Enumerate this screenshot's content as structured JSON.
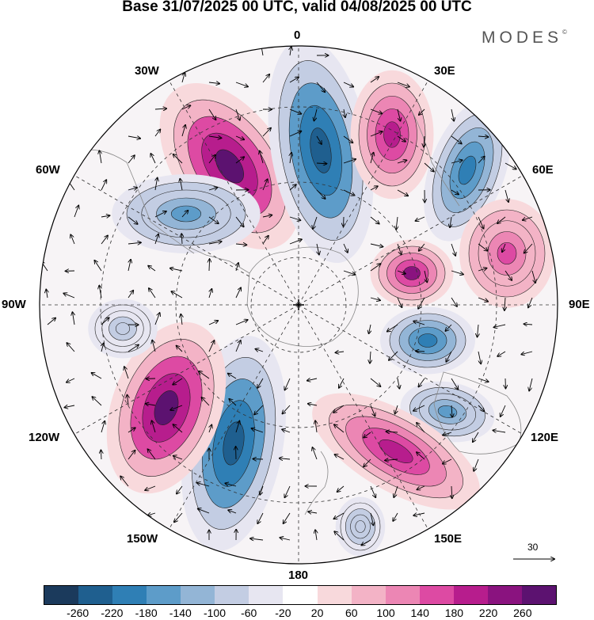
{
  "title": "Base 31/07/2025 00 UTC, valid 04/08/2025 00 UTC",
  "brand": "MODES",
  "brand_mark": "©",
  "longitude_labels": {
    "lon_0": "0",
    "lon_30e": "30E",
    "lon_60e": "60E",
    "lon_90e": "90E",
    "lon_120e": "120E",
    "lon_150e": "150E",
    "lon_180": "180",
    "lon_150w": "150W",
    "lon_120w": "120W",
    "lon_90w": "90W",
    "lon_60w": "60W",
    "lon_30w": "30W"
  },
  "reference_vector": "30",
  "colorbar": {
    "colors": [
      "#1b3a5c",
      "#1f5f8f",
      "#2f7fb5",
      "#5d9cc9",
      "#93b5d6",
      "#c3cde3",
      "#e7e6f1",
      "#ffffff",
      "#f8d9dc",
      "#f3b3c6",
      "#ec86b4",
      "#dd4aa3",
      "#b71d8d",
      "#8a137f",
      "#5c1270"
    ],
    "ticks": [
      "-260",
      "-220",
      "-180",
      "-140",
      "-100",
      "-60",
      "-20",
      "20",
      "60",
      "100",
      "140",
      "180",
      "220",
      "260"
    ]
  },
  "anomaly_centers": [
    {
      "type": "positive",
      "value": 260,
      "near": "40W"
    },
    {
      "type": "negative",
      "value": -260,
      "near": "10E"
    },
    {
      "type": "positive",
      "value": 200,
      "near": "35E"
    },
    {
      "type": "negative",
      "value": -200,
      "near": "55E"
    },
    {
      "type": "positive",
      "value": 140,
      "near": "75E"
    },
    {
      "type": "positive",
      "value": 220,
      "near": "85E"
    },
    {
      "type": "negative",
      "value": -220,
      "near": "100E"
    },
    {
      "type": "negative",
      "value": -160,
      "near": "120E"
    },
    {
      "type": "positive",
      "value": 180,
      "near": "145E"
    },
    {
      "type": "negative",
      "value": -100,
      "near": "165E"
    },
    {
      "type": "negative",
      "value": -260,
      "near": "150W"
    },
    {
      "type": "positive",
      "value": 260,
      "near": "120W"
    },
    {
      "type": "negative",
      "value": -80,
      "near": "100W"
    },
    {
      "type": "negative",
      "value": -160,
      "near": "60W"
    }
  ]
}
